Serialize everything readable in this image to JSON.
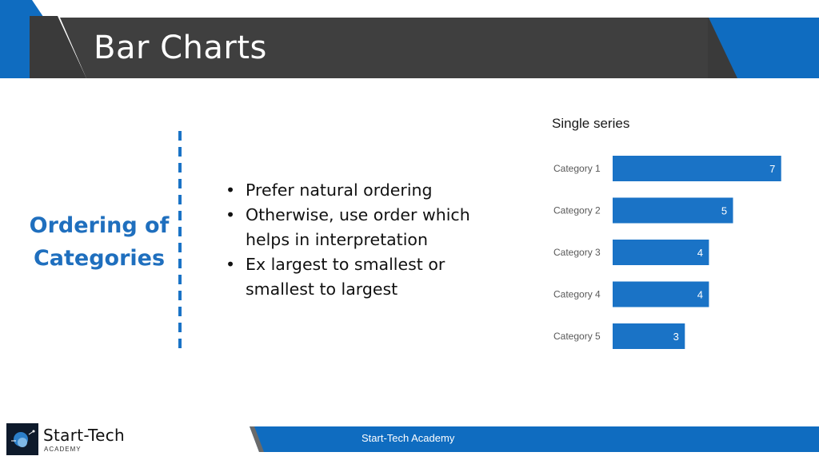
{
  "slide": {
    "title": "Bar Charts",
    "section_heading_line1": "Ordering of",
    "section_heading_line2": "Categories",
    "bullets": [
      "Prefer natural ordering",
      "Otherwise, use order which helps in interpretation",
      "Ex largest to smallest or smallest to largest"
    ],
    "bullet_glyph": "•"
  },
  "chart_data": {
    "type": "bar",
    "orientation": "horizontal",
    "title": "Single series",
    "categories": [
      "Category 1",
      "Category 2",
      "Category 3",
      "Category 4",
      "Category 5"
    ],
    "values": [
      7,
      5,
      4,
      4,
      3
    ],
    "xlim": [
      0,
      7
    ],
    "grid": false,
    "data_labels": true,
    "bar_color": "#1a73c6",
    "label_color": "#ffffff"
  },
  "footer": {
    "text": "Start-Tech Academy",
    "logo_name": "Start-Tech",
    "logo_sub": "ACADEMY"
  },
  "colors": {
    "header_dark": "#3f3f3f",
    "accent_blue": "#0f6cc0"
  }
}
